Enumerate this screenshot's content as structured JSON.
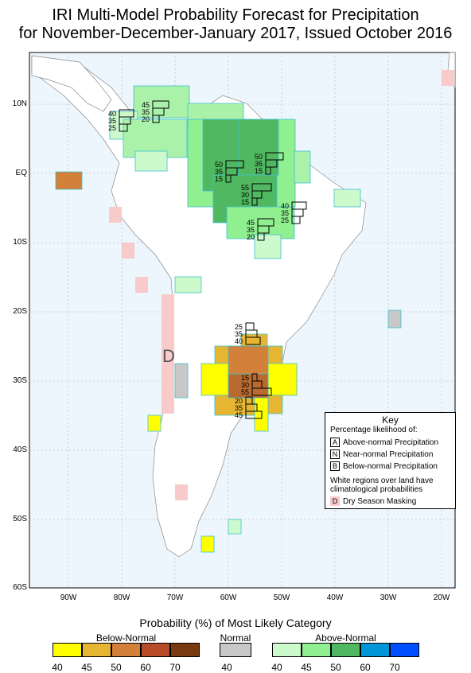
{
  "title_line1": "IRI Multi-Model Probability Forecast for Precipitation",
  "title_line2": "for November-December-January 2017, Issued October 2016",
  "lat_labels": [
    "10N",
    "EQ",
    "10S",
    "20S",
    "30S",
    "40S",
    "50S",
    "60S"
  ],
  "lon_labels": [
    "90W",
    "80W",
    "70W",
    "60W",
    "50W",
    "40W",
    "30W",
    "20W"
  ],
  "dry_season_letter": "D",
  "forecast_boxes": [
    {
      "a": "45",
      "n": "35",
      "b": "20"
    },
    {
      "a": "40",
      "n": "35",
      "b": "25"
    },
    {
      "a": "50",
      "n": "35",
      "b": "15"
    },
    {
      "a": "50",
      "n": "35",
      "b": "15"
    },
    {
      "a": "55",
      "n": "30",
      "b": "15"
    },
    {
      "a": "40",
      "n": "35",
      "b": "25"
    },
    {
      "a": "45",
      "n": "35",
      "b": "20"
    },
    {
      "a": "25",
      "n": "35",
      "b": "40"
    },
    {
      "a": "15",
      "n": "30",
      "b": "55"
    },
    {
      "a": "20",
      "n": "35",
      "b": "45"
    }
  ],
  "key": {
    "title": "Key",
    "subtitle": "Percentage likelihood of:",
    "a_letter": "A",
    "a_text": "Above-normal Precipitation",
    "n_letter": "N",
    "n_text": "Near-normal Precipitation",
    "b_letter": "B",
    "b_text": "Below-normal Precipitation",
    "white_note_1": "White regions over land have",
    "white_note_2": "climatological probabilities",
    "d_letter": "D",
    "d_text": "Dry Season Masking"
  },
  "legend": {
    "title": "Probability (%) of Most Likely Category",
    "below_label": "Below-Normal",
    "normal_label": "Normal",
    "above_label": "Above-Normal",
    "below_ticks": [
      "40",
      "45",
      "50",
      "60",
      "70"
    ],
    "normal_ticks": [
      "40"
    ],
    "above_ticks": [
      "40",
      "45",
      "50",
      "60",
      "70"
    ],
    "below_colors": [
      "#ffff00",
      "#e6b633",
      "#d2803a",
      "#b84c28",
      "#7a3a10"
    ],
    "normal_colors": [
      "#c8c8c8"
    ],
    "above_colors": [
      "#ccfacc",
      "#90f090",
      "#50b860",
      "#0096d8",
      "#0050ff"
    ]
  }
}
